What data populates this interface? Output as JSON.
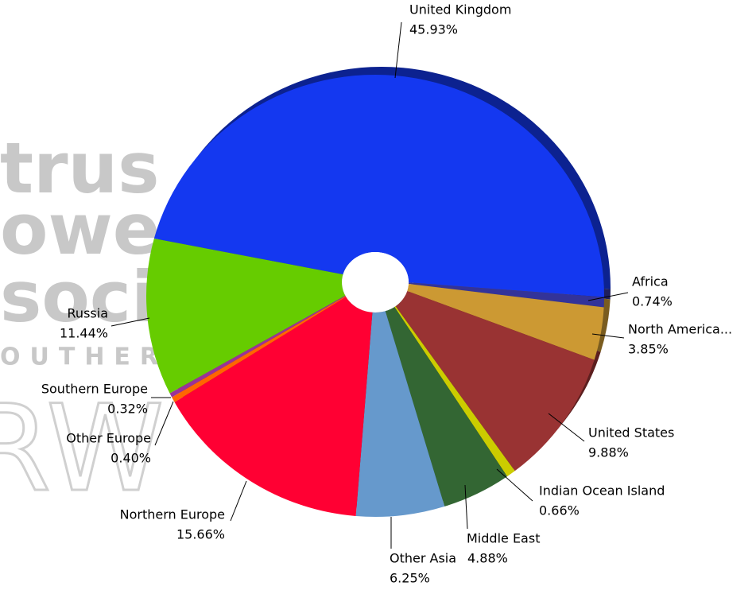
{
  "chart_data": {
    "type": "pie",
    "donut": true,
    "categories": [
      "United Kingdom",
      "Africa",
      "North America...",
      "United States",
      "Indian Ocean Island",
      "Middle East",
      "Other Asia",
      "Northern Europe",
      "Other Europe",
      "Southern Europe",
      "Russia"
    ],
    "values": [
      45.93,
      0.74,
      3.85,
      9.88,
      0.66,
      4.88,
      6.25,
      15.66,
      0.4,
      0.32,
      11.44
    ],
    "value_labels": [
      "45.93%",
      "0.74%",
      "3.85%",
      "9.88%",
      "0.66%",
      "4.88%",
      "6.25%",
      "15.66%",
      "0.40%",
      "0.32%",
      "11.44%"
    ],
    "colors": [
      "#1438f0",
      "#333399",
      "#cc9933",
      "#993333",
      "#cccc00",
      "#336633",
      "#6699cc",
      "#ff0033",
      "#ff6600",
      "#993399",
      "#66cc00"
    ],
    "watermark": [
      "trus",
      "owers’",
      "sociation",
      "OUTHERN AFRICA",
      "RW"
    ]
  }
}
